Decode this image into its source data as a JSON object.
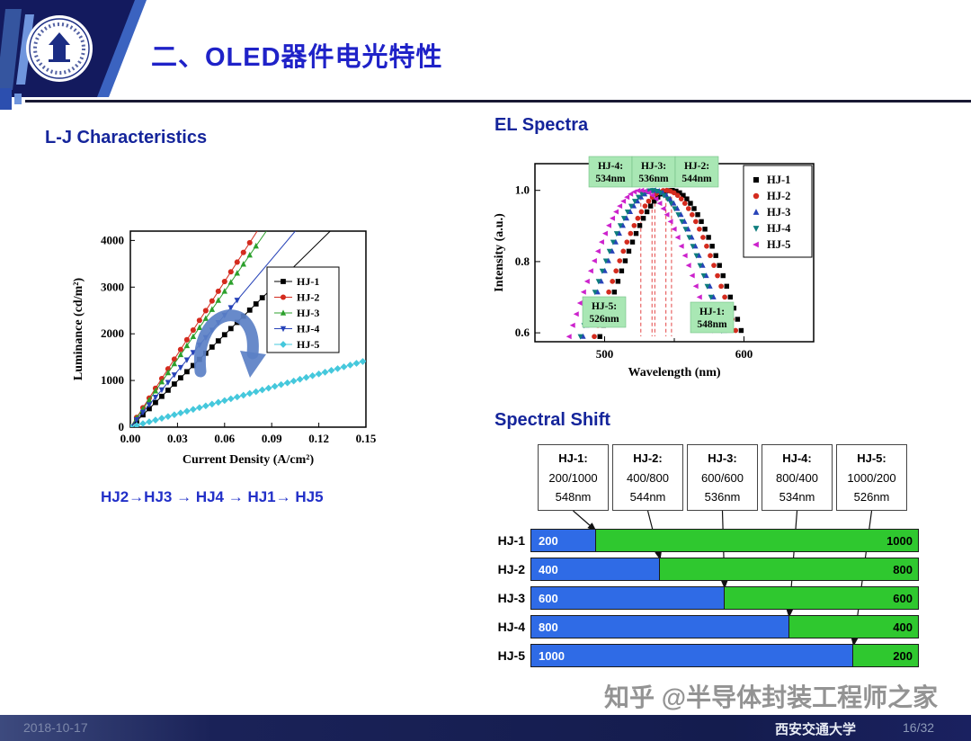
{
  "theme": {
    "title_blue": "#1f22c8",
    "heading_navy": "#15259b",
    "order_text_blue": "#2230c8",
    "header_navy": "#131a5e",
    "footer_navy": "#141c4e",
    "annotation_green": "#a9e7b4",
    "bar_blue": "#2f6be6",
    "bar_green": "#2fc82f",
    "arrow_blue": "#5b80c6"
  },
  "header": {
    "title": "二、OLED器件电光特性"
  },
  "sections": {
    "lj": {
      "heading": "L-J Characteristics",
      "order_text": "HJ2→HJ3 → HJ4 → HJ1→ HJ5"
    },
    "el": {
      "heading": "EL Spectra"
    },
    "shift": {
      "heading": "Spectral Shift"
    }
  },
  "watermark": "知乎 @半导体封装工程师之家",
  "footer": {
    "date": "2018-10-17",
    "university": "西安交通大学",
    "page": "16/32"
  },
  "chart_data": [
    {
      "id": "lj_characteristics",
      "type": "line",
      "title": "L-J Characteristics",
      "xlabel": "Current Density (A/cm²)",
      "ylabel": "Luminance (cd/m²)",
      "xlim": [
        0,
        0.15
      ],
      "ylim": [
        0,
        4200
      ],
      "xticks": [
        "0.00",
        "0.03",
        "0.06",
        "0.09",
        "0.12",
        "0.15"
      ],
      "yticks": [
        0,
        1000,
        2000,
        3000,
        4000
      ],
      "grid": false,
      "legend_position": "right-center",
      "series": [
        {
          "name": "HJ-1",
          "color": "#000000",
          "marker": "square",
          "slope_cd_per_Acm2": 33000,
          "marker_xmax": 0.085
        },
        {
          "name": "HJ-2",
          "color": "#d42b1e",
          "marker": "circle",
          "slope_cd_per_Acm2": 52000,
          "marker_xmax": 0.076
        },
        {
          "name": "HJ-3",
          "color": "#2ca02c",
          "marker": "triangle-up",
          "slope_cd_per_Acm2": 48500,
          "marker_xmax": 0.08
        },
        {
          "name": "HJ-4",
          "color": "#2743b8",
          "marker": "triangle-down",
          "slope_cd_per_Acm2": 40000,
          "marker_xmax": 0.07
        },
        {
          "name": "HJ-5",
          "color": "#45c8dc",
          "marker": "diamond",
          "slope_cd_per_Acm2": 9500,
          "marker_xmax": 0.15
        }
      ]
    },
    {
      "id": "el_spectra",
      "type": "scatter",
      "title": "EL Spectra",
      "xlabel": "Wavelength (nm)",
      "ylabel": "Intensity (a.u.)",
      "xlim": [
        450,
        650
      ],
      "ylim": [
        0.575,
        1.075
      ],
      "xticks": [
        500,
        600
      ],
      "xticks_minor": [
        450,
        550,
        650
      ],
      "yticks": [
        "1.0",
        "0.8",
        "0.6"
      ],
      "sigma_nm": 50,
      "peak_intensity": 1.0,
      "series": [
        {
          "name": "HJ-1",
          "color": "#000000",
          "marker": "square",
          "peak_nm": 548
        },
        {
          "name": "HJ-2",
          "color": "#d42b1e",
          "marker": "circle",
          "peak_nm": 544
        },
        {
          "name": "HJ-3",
          "color": "#2743b8",
          "marker": "triangle-up",
          "peak_nm": 536
        },
        {
          "name": "HJ-4",
          "color": "#0e7d7d",
          "marker": "triangle-down",
          "peak_nm": 534
        },
        {
          "name": "HJ-5",
          "color": "#cc22cc",
          "marker": "triangle-left",
          "peak_nm": 526
        }
      ],
      "annotations_top": [
        {
          "line1": "HJ-4:",
          "line2": "534nm"
        },
        {
          "line1": "HJ-3:",
          "line2": "536nm"
        },
        {
          "line1": "HJ-2:",
          "line2": "544nm"
        }
      ],
      "annotations_bottom": [
        {
          "line1": "HJ-5:",
          "line2": "526nm"
        },
        {
          "line1": "HJ-1:",
          "line2": "548nm"
        }
      ]
    },
    {
      "id": "spectral_shift",
      "type": "bar",
      "title": "Spectral Shift",
      "table": [
        {
          "name": "HJ-1:",
          "thickness": "200/1000",
          "wavelength": "548nm"
        },
        {
          "name": "HJ-2:",
          "thickness": "400/800",
          "wavelength": "544nm"
        },
        {
          "name": "HJ-3:",
          "thickness": "600/600",
          "wavelength": "536nm"
        },
        {
          "name": "HJ-4:",
          "thickness": "800/400",
          "wavelength": "534nm"
        },
        {
          "name": "HJ-5:",
          "thickness": "1000/200",
          "wavelength": "526nm"
        }
      ],
      "bars": [
        {
          "name": "HJ-1",
          "blue": 200,
          "green": 1000
        },
        {
          "name": "HJ-2",
          "blue": 400,
          "green": 800
        },
        {
          "name": "HJ-3",
          "blue": 600,
          "green": 600
        },
        {
          "name": "HJ-4",
          "blue": 800,
          "green": 400
        },
        {
          "name": "HJ-5",
          "blue": 1000,
          "green": 200
        }
      ],
      "colors": {
        "blue": "#2f6be6",
        "green": "#2fc82f"
      }
    }
  ]
}
